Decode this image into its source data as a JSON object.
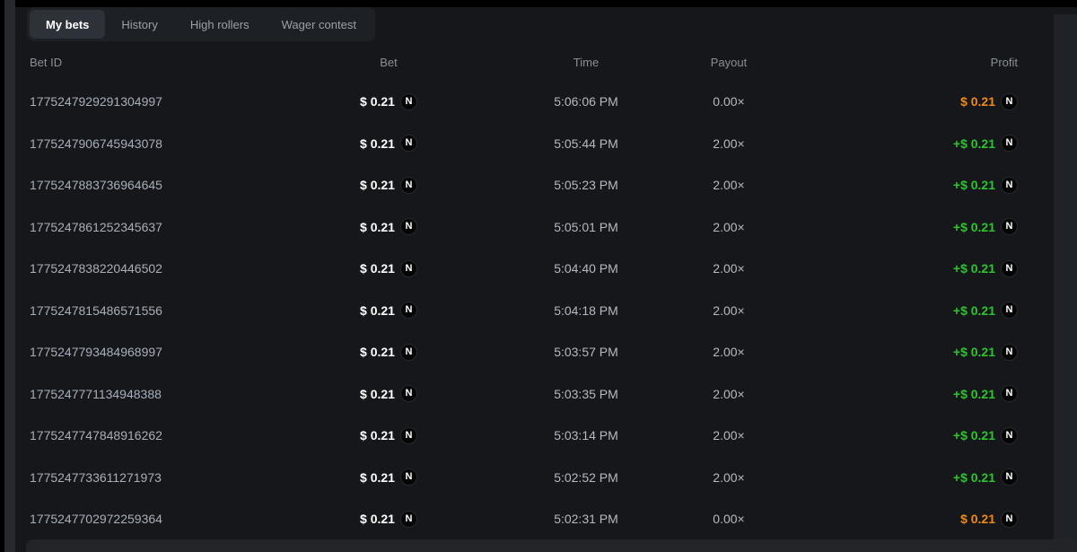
{
  "tabs": [
    {
      "label": "My bets",
      "active": true
    },
    {
      "label": "History",
      "active": false
    },
    {
      "label": "High rollers",
      "active": false
    },
    {
      "label": "Wager contest",
      "active": false
    }
  ],
  "table": {
    "columns": {
      "bet_id": "Bet ID",
      "bet": "Bet",
      "time": "Time",
      "payout": "Payout",
      "profit": "Profit"
    },
    "currency_symbol": "N",
    "currency_name": "nano",
    "rows": [
      {
        "bet_id": "1775247929291304997",
        "bet": "$ 0.21",
        "time": "5:06:06 PM",
        "payout": "0.00×",
        "profit": "$ 0.21",
        "state": "loss"
      },
      {
        "bet_id": "1775247906745943078",
        "bet": "$ 0.21",
        "time": "5:05:44 PM",
        "payout": "2.00×",
        "profit": "+$ 0.21",
        "state": "win"
      },
      {
        "bet_id": "1775247883736964645",
        "bet": "$ 0.21",
        "time": "5:05:23 PM",
        "payout": "2.00×",
        "profit": "+$ 0.21",
        "state": "win"
      },
      {
        "bet_id": "1775247861252345637",
        "bet": "$ 0.21",
        "time": "5:05:01 PM",
        "payout": "2.00×",
        "profit": "+$ 0.21",
        "state": "win"
      },
      {
        "bet_id": "1775247838220446502",
        "bet": "$ 0.21",
        "time": "5:04:40 PM",
        "payout": "2.00×",
        "profit": "+$ 0.21",
        "state": "win"
      },
      {
        "bet_id": "1775247815486571556",
        "bet": "$ 0.21",
        "time": "5:04:18 PM",
        "payout": "2.00×",
        "profit": "+$ 0.21",
        "state": "win"
      },
      {
        "bet_id": "1775247793484968997",
        "bet": "$ 0.21",
        "time": "5:03:57 PM",
        "payout": "2.00×",
        "profit": "+$ 0.21",
        "state": "win"
      },
      {
        "bet_id": "1775247771134948388",
        "bet": "$ 0.21",
        "time": "5:03:35 PM",
        "payout": "2.00×",
        "profit": "+$ 0.21",
        "state": "win"
      },
      {
        "bet_id": "1775247747848916262",
        "bet": "$ 0.21",
        "time": "5:03:14 PM",
        "payout": "2.00×",
        "profit": "+$ 0.21",
        "state": "win"
      },
      {
        "bet_id": "1775247733611271973",
        "bet": "$ 0.21",
        "time": "5:02:52 PM",
        "payout": "2.00×",
        "profit": "+$ 0.21",
        "state": "win"
      },
      {
        "bet_id": "1775247702972259364",
        "bet": "$ 0.21",
        "time": "5:02:31 PM",
        "payout": "0.00×",
        "profit": "$ 0.21",
        "state": "loss"
      }
    ]
  },
  "colors": {
    "win_profit": "#2dc42e",
    "loss_profit": "#f08a14",
    "background": "#15171b",
    "tabbar_background": "#1d2025",
    "active_tab_background": "#2d3138"
  }
}
